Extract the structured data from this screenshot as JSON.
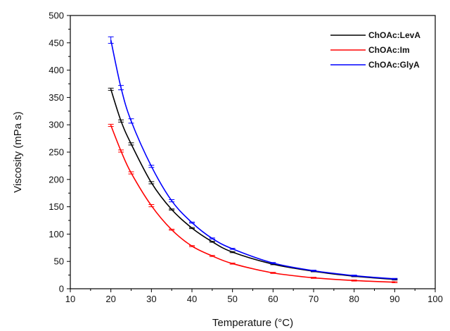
{
  "chart_data": {
    "type": "line",
    "title": "",
    "xlabel": "Temperature (°C)",
    "ylabel": "Viscosity (mPa s)",
    "xlim": [
      10,
      100
    ],
    "ylim": [
      0,
      500
    ],
    "xticks": [
      10,
      20,
      30,
      40,
      50,
      60,
      70,
      80,
      90,
      100
    ],
    "yticks": [
      0,
      50,
      100,
      150,
      200,
      250,
      300,
      350,
      400,
      450,
      500
    ],
    "grid": false,
    "legend_position": "top-right",
    "series": [
      {
        "name": "ChOAc:LevA",
        "color": "#000000",
        "x": [
          20,
          22.5,
          25,
          30,
          35,
          40,
          45,
          50,
          60,
          70,
          80,
          90
        ],
        "y": [
          365,
          307,
          265,
          194,
          145,
          111,
          86,
          67,
          45,
          32,
          23,
          17
        ],
        "err": [
          2,
          2,
          2,
          2,
          1,
          1,
          1,
          1,
          1,
          1,
          1,
          1
        ]
      },
      {
        "name": "ChOAc:Im",
        "color": "#ff0000",
        "x": [
          20,
          22.5,
          25,
          30,
          35,
          40,
          45,
          50,
          60,
          70,
          80,
          90
        ],
        "y": [
          299,
          252,
          212,
          152,
          108,
          78,
          60,
          46,
          29,
          20,
          15,
          12
        ],
        "err": [
          2,
          2,
          2,
          2,
          1,
          1,
          1,
          1,
          1,
          1,
          1,
          1
        ]
      },
      {
        "name": "ChOAc:GlyA",
        "color": "#0000ff",
        "x": [
          20,
          22.5,
          25,
          30,
          35,
          40,
          45,
          50,
          60,
          70,
          80,
          90
        ],
        "y": [
          455,
          368,
          307,
          224,
          161,
          121,
          92,
          73,
          47,
          33,
          24,
          18
        ],
        "err": [
          6,
          4,
          4,
          2,
          2,
          1,
          1,
          1,
          1,
          1,
          1,
          1
        ]
      }
    ]
  }
}
